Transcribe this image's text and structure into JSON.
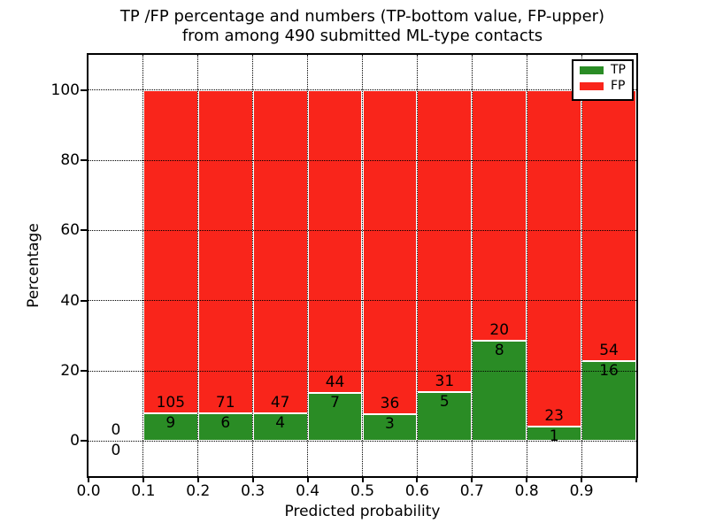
{
  "figure": {
    "title_line1": "TP /FP percentage and numbers (TP-bottom value, FP-upper)",
    "title_line2": "from among 490 submitted ML-type contacts"
  },
  "chart_data": {
    "type": "bar",
    "stacked": true,
    "normalized": "percent-of-bin-total",
    "title": "TP /FP percentage and numbers (TP-bottom value, FP-upper)\nfrom among 490 submitted ML-type contacts",
    "xlabel": "Predicted probability",
    "ylabel": "Percentage",
    "total_contacts": 490,
    "bin_edges": [
      0.0,
      0.1,
      0.2,
      0.3,
      0.4,
      0.5,
      0.6,
      0.7,
      0.8,
      0.9,
      1.0
    ],
    "series": [
      {
        "name": "TP",
        "color": "#2a8c25",
        "counts": [
          0,
          9,
          6,
          4,
          7,
          3,
          5,
          8,
          1,
          16
        ]
      },
      {
        "name": "FP",
        "color": "#f9251b",
        "counts": [
          0,
          105,
          71,
          47,
          44,
          36,
          31,
          20,
          23,
          54
        ]
      }
    ],
    "xticks": [
      "0.0",
      "0.1",
      "0.2",
      "0.3",
      "0.4",
      "0.5",
      "0.6",
      "0.7",
      "0.8",
      "0.9"
    ],
    "yticks": [
      "0",
      "20",
      "40",
      "60",
      "80",
      "100"
    ],
    "xlim": [
      0,
      1
    ],
    "ylim": [
      -10,
      110
    ],
    "grid": "dotted-black",
    "bar_edge_color": "#ffffff",
    "legend": {
      "position": "upper-right",
      "entries": [
        "TP",
        "FP"
      ]
    }
  }
}
